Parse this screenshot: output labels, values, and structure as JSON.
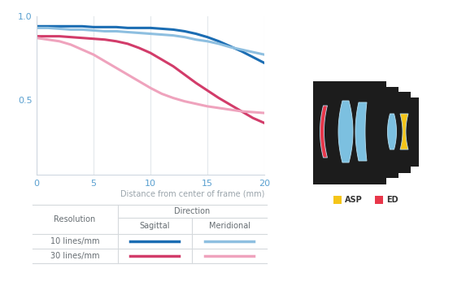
{
  "chart_data": {
    "type": "line",
    "x_label": "Distance from center of frame (mm)",
    "x": [
      0,
      1,
      2,
      3,
      4,
      5,
      6,
      7,
      8,
      9,
      10,
      11,
      12,
      13,
      14,
      15,
      16,
      17,
      18,
      19,
      20
    ],
    "xlim": [
      0,
      20
    ],
    "xticks": [
      0,
      5,
      10,
      15,
      20
    ],
    "ylim": [
      0.05,
      1.0
    ],
    "yticks": [
      0.5,
      {
        "value": 1.0,
        "label": "1.0"
      }
    ],
    "grid": true,
    "legend_table": {
      "row_header": "Resolution",
      "column_header": "Direction"
    },
    "series_groups": [
      {
        "name": "10 lines/mm",
        "series": [
          {
            "name": "Sagittal",
            "color": "#1b6db3",
            "values": [
              0.94,
              0.94,
              0.94,
              0.94,
              0.94,
              0.935,
              0.935,
              0.935,
              0.93,
              0.93,
              0.93,
              0.925,
              0.92,
              0.91,
              0.895,
              0.875,
              0.85,
              0.82,
              0.79,
              0.755,
              0.72
            ]
          },
          {
            "name": "Meridional",
            "color": "#8ebfe0",
            "values": [
              0.93,
              0.93,
              0.925,
              0.92,
              0.92,
              0.915,
              0.91,
              0.91,
              0.905,
              0.9,
              0.895,
              0.89,
              0.885,
              0.875,
              0.86,
              0.85,
              0.835,
              0.815,
              0.8,
              0.785,
              0.77
            ]
          }
        ]
      },
      {
        "name": "30 lines/mm",
        "series": [
          {
            "name": "Sagittal",
            "color": "#d23c6a",
            "values": [
              0.88,
              0.88,
              0.88,
              0.875,
              0.87,
              0.865,
              0.86,
              0.85,
              0.835,
              0.81,
              0.78,
              0.74,
              0.7,
              0.65,
              0.6,
              0.555,
              0.51,
              0.47,
              0.43,
              0.39,
              0.36
            ]
          },
          {
            "name": "Meridional",
            "color": "#efa3bd",
            "values": [
              0.87,
              0.86,
              0.85,
              0.83,
              0.8,
              0.77,
              0.73,
              0.69,
              0.65,
              0.61,
              0.57,
              0.535,
              0.51,
              0.49,
              0.475,
              0.46,
              0.45,
              0.44,
              0.43,
              0.425,
              0.42
            ]
          }
        ]
      }
    ]
  },
  "lens_diagram": {
    "legend": [
      {
        "label": "ASP",
        "color": "#f5c518"
      },
      {
        "label": "ED",
        "color": "#e8374a"
      }
    ]
  }
}
